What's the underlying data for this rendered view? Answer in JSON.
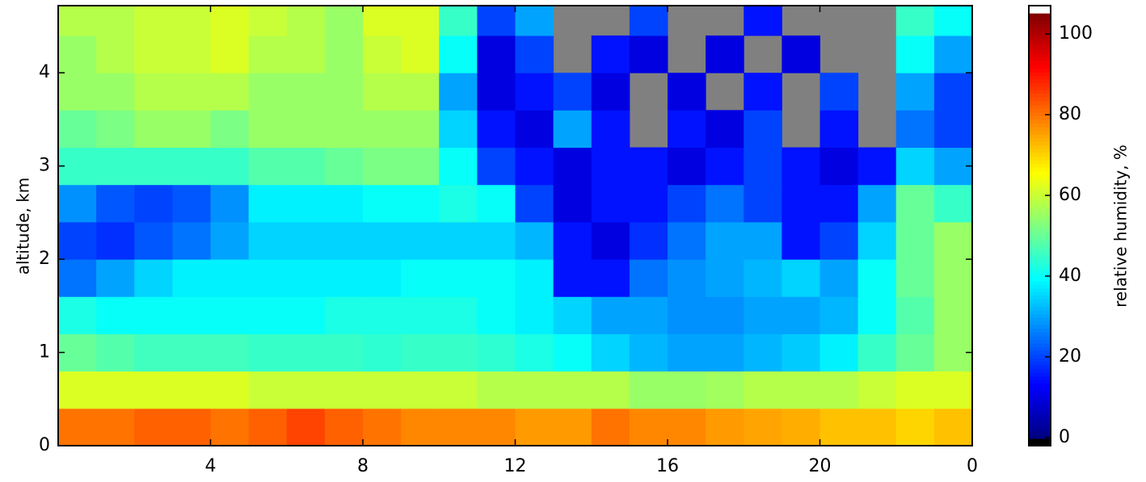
{
  "chart_data": {
    "type": "heatmap",
    "x_edges": [
      0,
      1,
      2,
      3,
      4,
      5,
      6,
      7,
      8,
      9,
      10,
      11,
      12,
      13,
      14,
      15,
      16,
      17,
      18,
      19,
      20,
      21,
      22,
      23,
      24
    ],
    "y_edges": [
      0,
      0.4,
      0.8,
      1.2,
      1.6,
      2.0,
      2.4,
      2.8,
      3.2,
      3.6,
      4.0,
      4.4,
      4.72
    ],
    "z": [
      [
        80,
        80,
        82,
        82,
        80,
        82,
        85,
        82,
        80,
        78,
        78,
        78,
        76,
        76,
        80,
        78,
        78,
        76,
        75,
        74,
        72,
        72,
        70,
        72
      ],
      [
        62,
        62,
        62,
        62,
        62,
        60,
        60,
        60,
        60,
        60,
        60,
        58,
        58,
        58,
        58,
        55,
        55,
        56,
        58,
        58,
        58,
        60,
        62,
        62
      ],
      [
        50,
        48,
        46,
        46,
        46,
        45,
        45,
        45,
        44,
        45,
        45,
        44,
        42,
        40,
        35,
        32,
        30,
        30,
        32,
        34,
        38,
        45,
        50,
        55
      ],
      [
        42,
        40,
        40,
        40,
        40,
        40,
        40,
        42,
        42,
        42,
        42,
        40,
        38,
        35,
        30,
        30,
        28,
        28,
        30,
        30,
        32,
        40,
        48,
        55
      ],
      [
        25,
        30,
        35,
        38,
        38,
        38,
        38,
        38,
        38,
        40,
        40,
        40,
        38,
        15,
        15,
        25,
        28,
        30,
        32,
        35,
        30,
        40,
        50,
        55
      ],
      [
        20,
        18,
        22,
        25,
        30,
        35,
        35,
        35,
        35,
        35,
        35,
        35,
        32,
        15,
        10,
        18,
        25,
        30,
        30,
        15,
        20,
        35,
        50,
        55
      ],
      [
        28,
        22,
        20,
        22,
        28,
        38,
        38,
        38,
        40,
        40,
        42,
        40,
        20,
        10,
        15,
        15,
        20,
        25,
        20,
        15,
        15,
        30,
        50,
        45
      ],
      [
        45,
        45,
        45,
        45,
        45,
        48,
        48,
        50,
        52,
        52,
        40,
        20,
        15,
        10,
        15,
        15,
        10,
        15,
        20,
        15,
        10,
        15,
        35,
        30
      ],
      [
        50,
        52,
        55,
        55,
        52,
        55,
        55,
        55,
        55,
        55,
        35,
        15,
        10,
        30,
        15,
        null,
        15,
        10,
        20,
        null,
        15,
        null,
        25,
        20
      ],
      [
        55,
        55,
        58,
        58,
        58,
        55,
        55,
        55,
        58,
        58,
        30,
        10,
        15,
        20,
        10,
        null,
        10,
        null,
        15,
        null,
        20,
        null,
        30,
        20
      ],
      [
        55,
        58,
        60,
        60,
        62,
        58,
        58,
        55,
        60,
        62,
        40,
        10,
        20,
        null,
        15,
        10,
        null,
        10,
        null,
        10,
        null,
        null,
        40,
        30
      ],
      [
        58,
        58,
        60,
        60,
        62,
        60,
        58,
        55,
        62,
        62,
        45,
        20,
        30,
        null,
        null,
        20,
        null,
        null,
        15,
        null,
        null,
        null,
        45,
        40
      ]
    ],
    "missing_color": "#808080",
    "xlim": [
      0,
      24
    ],
    "xticks": [
      4,
      8,
      12,
      16,
      20,
      {
        "value": 24,
        "label": "0"
      }
    ],
    "ylim": [
      0,
      4.72
    ],
    "yticks": [
      0,
      1,
      2,
      3,
      4
    ],
    "ylabel": "altitude, km",
    "colormap": "jet",
    "color_range": [
      0,
      105
    ],
    "colorbar_lim": [
      -2,
      107
    ],
    "colorbar_ticks": [
      0,
      20,
      40,
      60,
      80,
      100
    ],
    "colorbar_label": "relative humidity, %"
  }
}
